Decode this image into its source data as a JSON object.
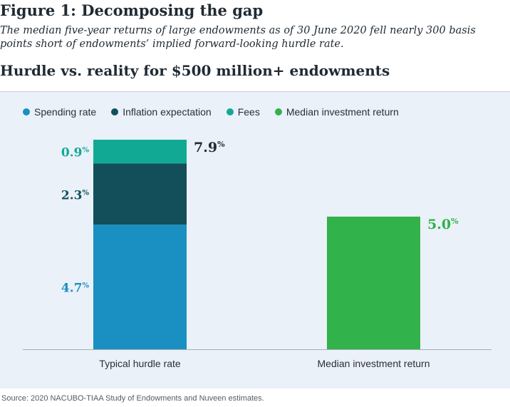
{
  "figure": {
    "title": "Figure 1: Decomposing the gap",
    "subtitle": "The median five-year returns of large endowments as of 30 June 2020 fell nearly 300 basis points short of endowments’ implied forward-looking hurdle rate.",
    "heading": "Hurdle vs. reality for $500 million+ endowments",
    "source": "Source: 2020 NACUBO-TIAA Study of Endowments and Nuveen estimates."
  },
  "legend": [
    {
      "label": "Spending rate",
      "color": "#1a8fc1"
    },
    {
      "label": "Inflation expectation",
      "color": "#124f5a"
    },
    {
      "label": "Fees",
      "color": "#12a994"
    },
    {
      "label": "Median investment return",
      "color": "#32b24a"
    }
  ],
  "chart_data": {
    "type": "bar",
    "stacked": true,
    "categories": [
      "Typical hurdle rate",
      "Median investment return"
    ],
    "series": [
      {
        "name": "Spending rate",
        "color": "#1a8fc1",
        "values": [
          4.7,
          null
        ],
        "labels": [
          "4.7",
          null
        ]
      },
      {
        "name": "Inflation expectation",
        "color": "#124f5a",
        "values": [
          2.3,
          null
        ],
        "labels": [
          "2.3",
          null
        ]
      },
      {
        "name": "Fees",
        "color": "#12a994",
        "values": [
          0.9,
          null
        ],
        "labels": [
          "0.9",
          null
        ]
      },
      {
        "name": "Median investment return",
        "color": "#32b24a",
        "values": [
          null,
          5.0
        ],
        "labels": [
          null,
          "5.0"
        ]
      }
    ],
    "totals": [
      {
        "value": 7.9,
        "label": "7.9",
        "color": "#1f2a33"
      },
      {
        "value": 5.0,
        "label": "5.0",
        "color": "#32b24a"
      }
    ],
    "unit": "%",
    "ylim": [
      0,
      8.3
    ],
    "title": "Hurdle vs. reality for $500 million+ endowments",
    "xlabel": "",
    "ylabel": ""
  }
}
